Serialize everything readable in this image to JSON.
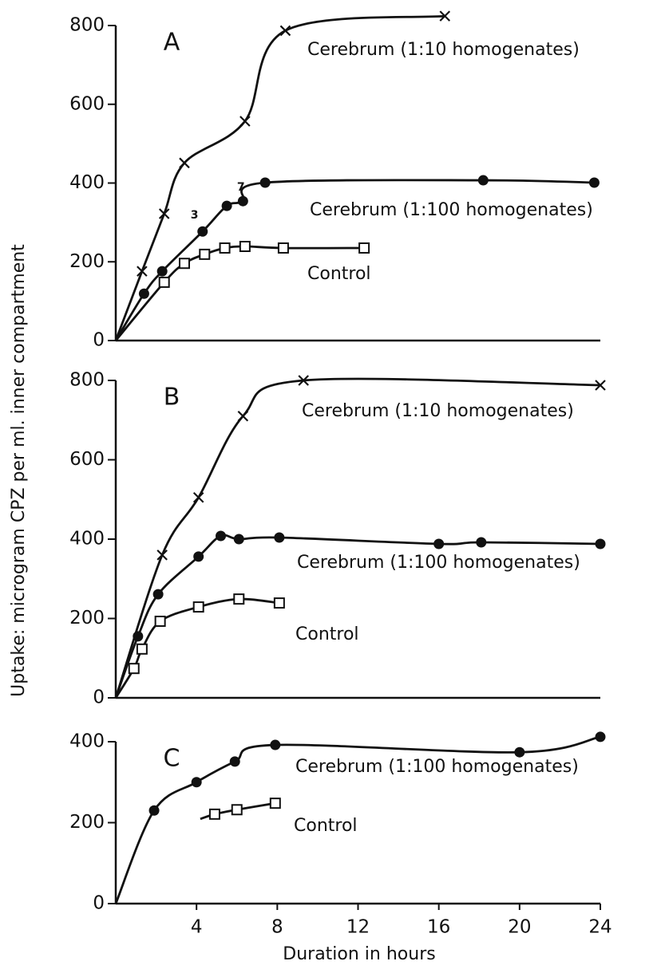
{
  "axis_labels": {
    "y": "Uptake: microgram CPZ per ml. inner compartment",
    "x": "Duration in hours"
  },
  "chart_data": [
    {
      "type": "scatter",
      "title": "A",
      "xlim": [
        0,
        24
      ],
      "ylim": [
        0,
        800
      ],
      "yticks": [
        0,
        200,
        400,
        600,
        800
      ],
      "series": [
        {
          "name": "Cerebrum (1:10 homogenates)",
          "marker": "x",
          "color": "#111111",
          "x": [
            1.3,
            2.4,
            3.4,
            6.4,
            8.4,
            16.3
          ],
          "values": [
            176,
            322,
            451,
            557,
            787,
            824
          ]
        },
        {
          "name": "Cerebrum (1:100 homogenates)",
          "marker": "circle",
          "color": "#111111",
          "x": [
            1.4,
            2.3,
            4.3,
            5.5,
            6.3,
            7.4,
            18.2,
            23.7
          ],
          "values": [
            119,
            176,
            277,
            342,
            354,
            401,
            407,
            401
          ]
        },
        {
          "name": "Control",
          "marker": "square",
          "color": "#111111",
          "x": [
            2.4,
            3.4,
            4.4,
            5.4,
            6.4,
            8.3,
            12.3
          ],
          "values": [
            148,
            196,
            219,
            235,
            239,
            235,
            235
          ]
        }
      ],
      "annotations": [
        {
          "text": "3",
          "x": 3.9,
          "y": 318
        },
        {
          "text": "7",
          "x": 6.2,
          "y": 389
        }
      ]
    },
    {
      "type": "scatter",
      "title": "B",
      "xlim": [
        0,
        24
      ],
      "ylim": [
        0,
        800
      ],
      "yticks": [
        0,
        200,
        400,
        600,
        800
      ],
      "series": [
        {
          "name": "Cerebrum (1:10 homogenates)",
          "marker": "x",
          "color": "#111111",
          "x": [
            2.3,
            4.1,
            6.3,
            9.3,
            24
          ],
          "values": [
            360,
            505,
            710,
            800,
            788
          ]
        },
        {
          "name": "Cerebrum (1:100 homogenates)",
          "marker": "circle",
          "color": "#111111",
          "x": [
            1.1,
            2.1,
            4.1,
            5.2,
            6.1,
            8.1,
            16,
            18.1,
            24
          ],
          "values": [
            155,
            261,
            356,
            408,
            400,
            404,
            388,
            392,
            388
          ]
        },
        {
          "name": "Control",
          "marker": "square",
          "color": "#111111",
          "x": [
            0.9,
            1.3,
            2.2,
            4.1,
            6.1,
            8.1
          ],
          "values": [
            74,
            123,
            193,
            229,
            249,
            239
          ]
        }
      ]
    },
    {
      "type": "scatter",
      "title": "C",
      "xlim": [
        0,
        24
      ],
      "ylim": [
        0,
        400
      ],
      "yticks": [
        0,
        200,
        400
      ],
      "xticks": [
        4,
        8,
        12,
        16,
        20,
        24
      ],
      "series": [
        {
          "name": "Cerebrum (1:100 homogenates)",
          "marker": "circle",
          "color": "#111111",
          "x": [
            1.9,
            4.0,
            5.9,
            7.9,
            20,
            24
          ],
          "values": [
            230,
            300,
            351,
            392,
            374,
            412
          ]
        },
        {
          "name": "Control",
          "marker": "square",
          "color": "#111111",
          "x": [
            4.9,
            6.0,
            7.9
          ],
          "values": [
            221,
            232,
            248
          ]
        }
      ]
    }
  ]
}
